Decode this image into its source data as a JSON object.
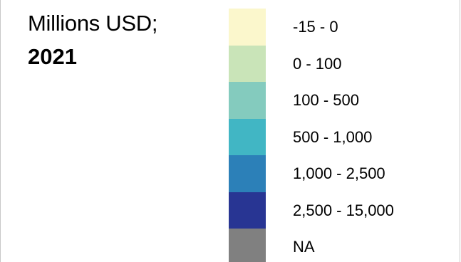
{
  "legend": {
    "title": "Millions USD;",
    "year": "2021",
    "items": [
      {
        "label": "-15 - 0",
        "color": "#fbf7cc"
      },
      {
        "label": "0 - 100",
        "color": "#c9e4b8"
      },
      {
        "label": "100 - 500",
        "color": "#84cbbe"
      },
      {
        "label": "500 - 1,000",
        "color": "#41b6c4"
      },
      {
        "label": "1,000 - 2,500",
        "color": "#2c80b8"
      },
      {
        "label": "2,500 - 15,000",
        "color": "#283593"
      },
      {
        "label": "NA",
        "color": "#808080"
      }
    ]
  }
}
